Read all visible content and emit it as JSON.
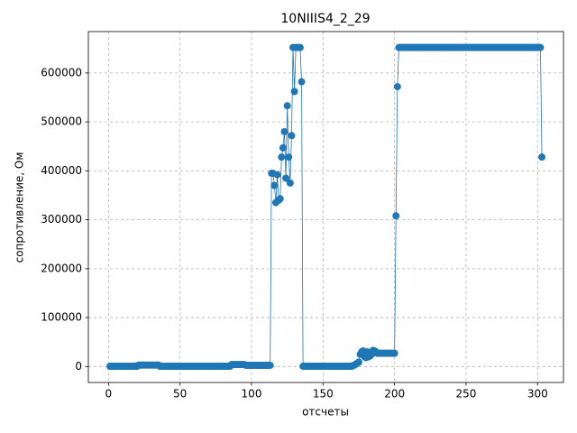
{
  "chart_data": {
    "type": "line",
    "title": "10NIIIS4_2_29",
    "x_label": "отсчеты",
    "y_label": "сопротивление, Ом",
    "color": "#1f77b4",
    "grid": true,
    "xlim": [
      -14.1,
      318.1
    ],
    "xticks": [
      0,
      50,
      100,
      150,
      200,
      250,
      300
    ],
    "ylim": [
      -32600,
      684600
    ],
    "yticks": [
      0,
      100000,
      200000,
      300000,
      400000,
      500000,
      600000
    ],
    "x": [
      1,
      2,
      3,
      4,
      5,
      6,
      7,
      8,
      9,
      10,
      11,
      12,
      13,
      14,
      15,
      16,
      17,
      18,
      19,
      20,
      21,
      22,
      23,
      24,
      25,
      26,
      27,
      28,
      29,
      30,
      31,
      32,
      33,
      34,
      35,
      36,
      37,
      38,
      39,
      40,
      41,
      42,
      43,
      44,
      45,
      46,
      47,
      48,
      49,
      50,
      51,
      52,
      53,
      54,
      55,
      56,
      57,
      58,
      59,
      60,
      61,
      62,
      63,
      64,
      65,
      66,
      67,
      68,
      69,
      70,
      71,
      72,
      73,
      74,
      75,
      76,
      77,
      78,
      79,
      80,
      81,
      82,
      83,
      84,
      85,
      86,
      87,
      88,
      89,
      90,
      91,
      92,
      93,
      94,
      95,
      96,
      97,
      98,
      99,
      100,
      101,
      102,
      103,
      104,
      105,
      106,
      107,
      108,
      109,
      110,
      111,
      112,
      113,
      114,
      115,
      116,
      117,
      118,
      119,
      120,
      121,
      122,
      123,
      124,
      125,
      126,
      127,
      128,
      129,
      130,
      131,
      132,
      133,
      134,
      135,
      136,
      137,
      138,
      139,
      140,
      141,
      142,
      143,
      144,
      145,
      146,
      147,
      148,
      149,
      150,
      151,
      152,
      153,
      154,
      155,
      156,
      157,
      158,
      159,
      160,
      161,
      162,
      163,
      164,
      165,
      166,
      167,
      168,
      169,
      170,
      171,
      172,
      173,
      174,
      175,
      176,
      177,
      178,
      179,
      180,
      181,
      182,
      183,
      184,
      185,
      186,
      187,
      188,
      189,
      190,
      191,
      192,
      193,
      194,
      195,
      196,
      197,
      198,
      199,
      200,
      201,
      202,
      203,
      204,
      205,
      206,
      207,
      208,
      209,
      210,
      211,
      212,
      213,
      214,
      215,
      216,
      217,
      218,
      219,
      220,
      221,
      222,
      223,
      224,
      225,
      226,
      227,
      228,
      229,
      230,
      231,
      232,
      233,
      234,
      235,
      236,
      237,
      238,
      239,
      240,
      241,
      242,
      243,
      244,
      245,
      246,
      247,
      248,
      249,
      250,
      251,
      252,
      253,
      254,
      255,
      256,
      257,
      258,
      259,
      260,
      261,
      262,
      263,
      264,
      265,
      266,
      267,
      268,
      269,
      270,
      271,
      272,
      273,
      274,
      275,
      276,
      277,
      278,
      279,
      280,
      281,
      282,
      283,
      284,
      285,
      286,
      287,
      288,
      289,
      290,
      291,
      292,
      293,
      294,
      295,
      296,
      297,
      298,
      299,
      300,
      301,
      302,
      303
    ],
    "values": [
      500,
      500,
      500,
      500,
      500,
      500,
      500,
      500,
      500,
      500,
      500,
      500,
      500,
      500,
      500,
      500,
      500,
      500,
      500,
      500,
      3000,
      3000,
      3000,
      3000,
      3000,
      3000,
      3000,
      3000,
      3000,
      3000,
      3000,
      3000,
      3000,
      3000,
      3000,
      500,
      500,
      500,
      500,
      500,
      500,
      500,
      500,
      500,
      500,
      500,
      500,
      500,
      500,
      500,
      500,
      500,
      500,
      500,
      500,
      500,
      500,
      500,
      500,
      500,
      500,
      500,
      500,
      500,
      500,
      500,
      500,
      500,
      500,
      500,
      500,
      500,
      500,
      500,
      500,
      500,
      500,
      500,
      500,
      500,
      500,
      500,
      500,
      500,
      500,
      4000,
      4000,
      4000,
      4000,
      4000,
      4000,
      4000,
      4000,
      4000,
      4000,
      2500,
      2500,
      2500,
      2500,
      2500,
      2500,
      2500,
      2500,
      2500,
      2500,
      2500,
      2500,
      2500,
      2500,
      2500,
      2500,
      2500,
      2500,
      395000,
      395000,
      370000,
      335000,
      392000,
      340000,
      343000,
      428000,
      447000,
      480000,
      385000,
      533000,
      428000,
      375000,
      472000,
      652000,
      562000,
      652000,
      652000,
      652000,
      652000,
      582000,
      500,
      500,
      500,
      500,
      500,
      500,
      500,
      500,
      500,
      500,
      500,
      500,
      500,
      500,
      500,
      500,
      500,
      500,
      500,
      500,
      500,
      500,
      500,
      500,
      500,
      500,
      500,
      500,
      500,
      500,
      500,
      500,
      500,
      500,
      500,
      2000,
      3000,
      5000,
      7000,
      9000,
      25000,
      30000,
      32000,
      20000,
      18000,
      30000,
      20000,
      22000,
      25000,
      33000,
      32000,
      30000,
      27000,
      27000,
      27000,
      27000,
      27000,
      27000,
      27000,
      27000,
      27000,
      27000,
      27000,
      27000,
      27000,
      308000,
      572000,
      652000,
      652000,
      652000,
      652000,
      652000,
      652000,
      652000,
      652000,
      652000,
      652000,
      652000,
      652000,
      652000,
      652000,
      652000,
      652000,
      652000,
      652000,
      652000,
      652000,
      652000,
      652000,
      652000,
      652000,
      652000,
      652000,
      652000,
      652000,
      652000,
      652000,
      652000,
      652000,
      652000,
      652000,
      652000,
      652000,
      652000,
      652000,
      652000,
      652000,
      652000,
      652000,
      652000,
      652000,
      652000,
      652000,
      652000,
      652000,
      652000,
      652000,
      652000,
      652000,
      652000,
      652000,
      652000,
      652000,
      652000,
      652000,
      652000,
      652000,
      652000,
      652000,
      652000,
      652000,
      652000,
      652000,
      652000,
      652000,
      652000,
      652000,
      652000,
      652000,
      652000,
      652000,
      652000,
      652000,
      652000,
      652000,
      652000,
      652000,
      652000,
      652000,
      652000,
      652000,
      652000,
      652000,
      652000,
      652000,
      652000,
      652000,
      652000,
      652000,
      652000,
      652000,
      652000,
      652000,
      652000,
      652000,
      652000,
      652000,
      428000
    ]
  }
}
